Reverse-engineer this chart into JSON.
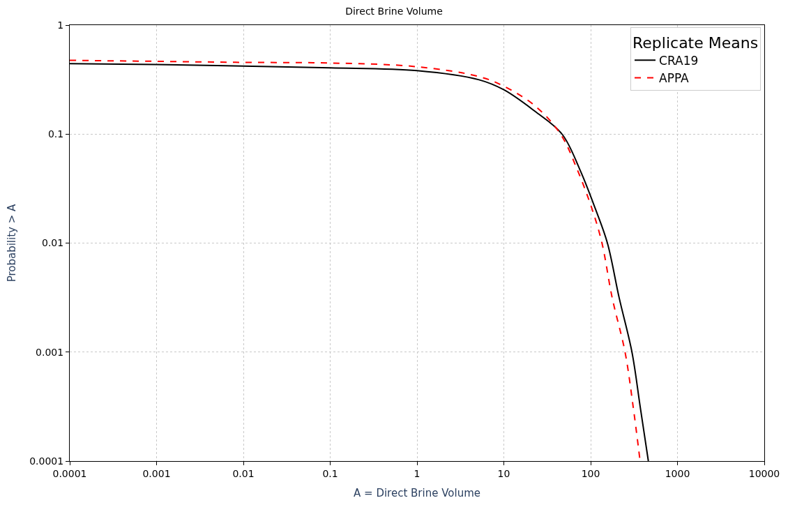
{
  "chart_data": {
    "type": "line",
    "title": "Direct Brine Volume",
    "xlabel": "A = Direct Brine Volume",
    "ylabel": "Probability > A",
    "legend_title": "Replicate Means",
    "log": "xy",
    "grid": true,
    "legend": "top right",
    "xlim": [
      0.0001,
      10000
    ],
    "ylim": [
      0.0001,
      1
    ],
    "xticks": [
      0.0001,
      0.001,
      0.01,
      0.1,
      1,
      10,
      100,
      1000,
      10000
    ],
    "yticks": [
      0.0001,
      0.001,
      0.01,
      0.1,
      1
    ],
    "series": [
      {
        "name": "CRA19",
        "color": "#000000",
        "line_style": "solid",
        "x": [
          0.0001,
          0.001,
          0.01,
          0.1,
          1,
          5.18,
          10,
          22.8,
          46.8,
          74.5,
          115,
          156,
          213,
          299,
          371,
          462
        ],
        "values": [
          0.443,
          0.435,
          0.42,
          0.405,
          0.382,
          0.315,
          0.255,
          0.162,
          0.1,
          0.048,
          0.02,
          0.01,
          0.00315,
          0.001,
          0.00032,
          0.0001
        ]
      },
      {
        "name": "APPA",
        "color": "#ff0000",
        "line_style": "dashed",
        "x": [
          0.0001,
          0.001,
          0.01,
          0.1,
          1,
          5.18,
          10,
          22.8,
          45,
          69.5,
          105,
          135,
          177,
          249,
          308,
          371
        ],
        "values": [
          0.475,
          0.465,
          0.455,
          0.449,
          0.415,
          0.337,
          0.275,
          0.182,
          0.1,
          0.048,
          0.02,
          0.01,
          0.00315,
          0.001,
          0.00032,
          0.0001
        ]
      }
    ]
  }
}
